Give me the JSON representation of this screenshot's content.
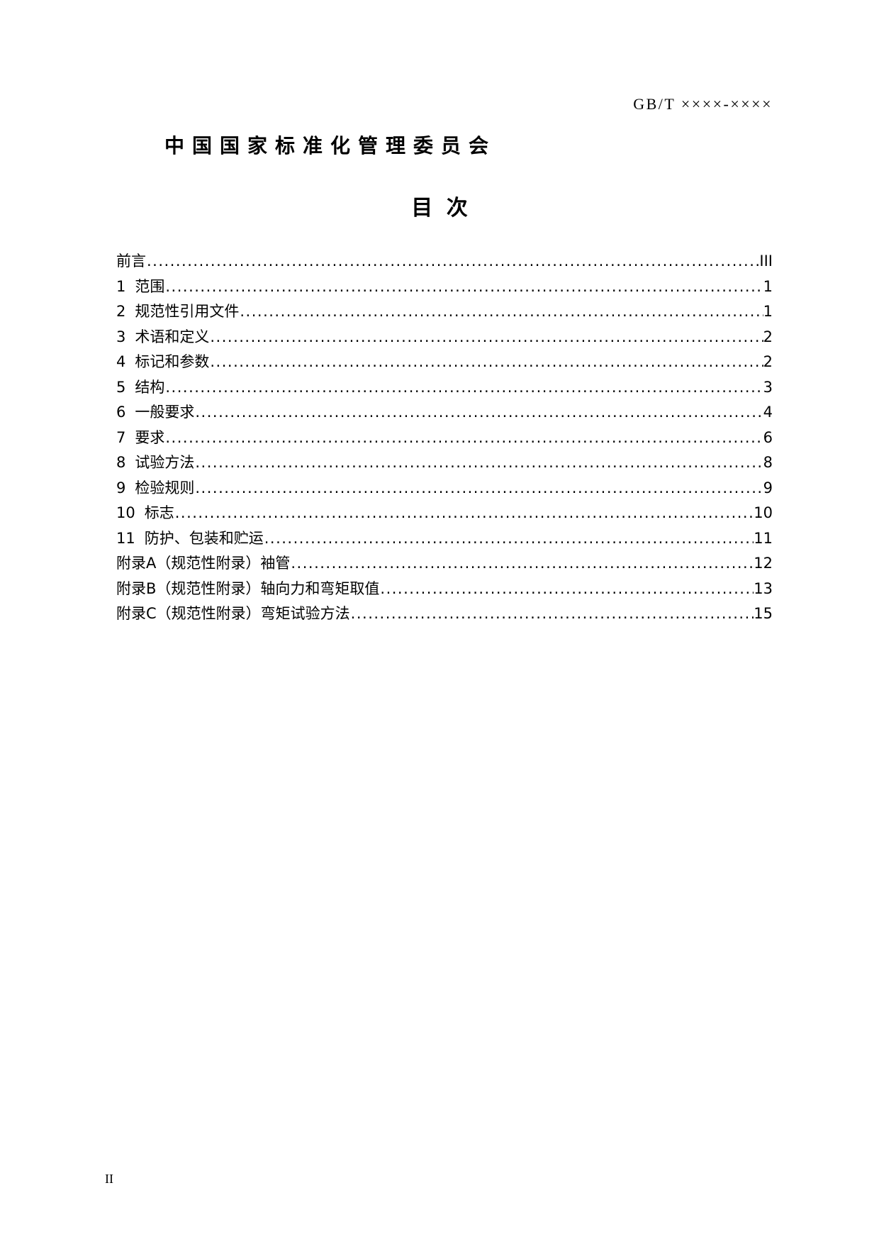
{
  "header": {
    "doc_code": "GB/T ××××-××××",
    "organization": "中国国家标准化管理委员会"
  },
  "toc": {
    "title": "目 次",
    "entries": [
      {
        "num": "",
        "title": "前言",
        "page": "III"
      },
      {
        "num": "1",
        "title": "范围",
        "page": "1"
      },
      {
        "num": "2",
        "title": "规范性引用文件",
        "page": "1"
      },
      {
        "num": "3",
        "title": "术语和定义",
        "page": "2"
      },
      {
        "num": "4",
        "title": "标记和参数",
        "page": "2"
      },
      {
        "num": "5",
        "title": "结构",
        "page": "3"
      },
      {
        "num": "6",
        "title": "一般要求",
        "page": "4"
      },
      {
        "num": "7",
        "title": "要求",
        "page": "6"
      },
      {
        "num": "8",
        "title": "试验方法",
        "page": "8"
      },
      {
        "num": "9",
        "title": "检验规则",
        "page": "9"
      },
      {
        "num": "10",
        "title": "标志",
        "page": "10"
      },
      {
        "num": "11",
        "title": "防护、包装和贮运",
        "page": "11"
      },
      {
        "num": "",
        "title": "附录A（规范性附录）袖管",
        "page": "12"
      },
      {
        "num": "",
        "title": "附录B（规范性附录）轴向力和弯矩取值",
        "page": "13"
      },
      {
        "num": "",
        "title": "附录C（规范性附录）弯矩试验方法",
        "page": "15"
      }
    ]
  },
  "footer": {
    "page_number": "II"
  }
}
